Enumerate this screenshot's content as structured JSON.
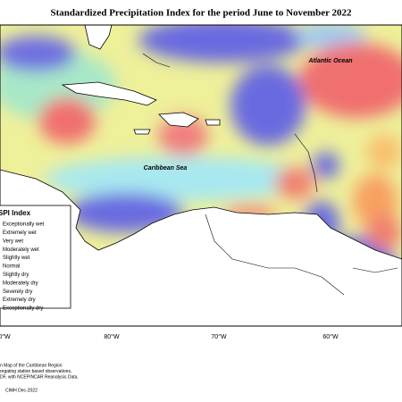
{
  "title": "Standardized Precipitation Index for the period June to November 2022",
  "labels": {
    "atlantic": "Atlantic Ocean",
    "caribbean": "Caribbean Sea"
  },
  "legend": {
    "title": "SPI Index",
    "items": [
      "Exceptionally wet",
      "Extremely wet",
      "Very wet",
      "Moderately wet",
      "Slightly wet",
      "Normal",
      "Slightly dry",
      "Moderately dry",
      "Severely dry",
      "Extremely dry",
      "Exceptionally dry"
    ]
  },
  "longitude_labels": [
    "0°W",
    "80°W",
    "70°W",
    "60°W"
  ],
  "notes": [
    "n Map of the Caribbean Region",
    "regating station based observations,",
    "DF, with NCEP/NCAR Reanalysis Data."
  ],
  "credit": "CIMH Dec-2022"
}
